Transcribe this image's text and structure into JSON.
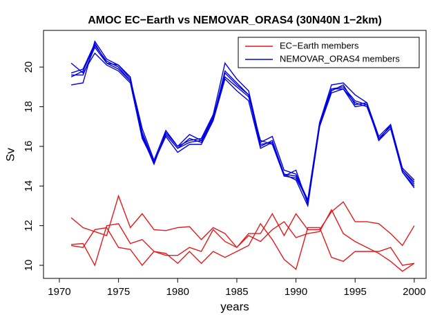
{
  "chart_data": {
    "type": "line",
    "title": "AMOC EC−Earth vs NEMOVAR_ORAS4 (30N40N 1−2km)",
    "x_label": "years",
    "y_label": "Sv",
    "x": [
      1971,
      1972,
      1973,
      1974,
      1975,
      1976,
      1977,
      1978,
      1979,
      1980,
      1981,
      1982,
      1983,
      1984,
      1985,
      1986,
      1987,
      1988,
      1989,
      1990,
      1991,
      1992,
      1993,
      1994,
      1995,
      1996,
      1997,
      1998,
      1999,
      2000
    ],
    "series": [
      {
        "name": "EC−Earth members",
        "color": "#e41a1c",
        "members": [
          [
            12.4,
            11.9,
            11.7,
            11.5,
            13.5,
            11.9,
            12.6,
            11.8,
            11.75,
            11.9,
            11.95,
            11.3,
            11.9,
            11.6,
            10.9,
            11.6,
            11.6,
            12.6,
            11.5,
            12.6,
            11.8,
            11.8,
            12.7,
            13.2,
            12.2,
            12.2,
            12.1,
            11.6,
            11.0,
            12.0
          ],
          [
            11.05,
            11.1,
            10.0,
            12.0,
            12.1,
            11.1,
            11.3,
            10.7,
            10.5,
            10.5,
            10.9,
            10.7,
            11.8,
            11.2,
            10.9,
            11.5,
            11.2,
            11.8,
            12.2,
            11.4,
            11.6,
            11.7,
            12.8,
            11.6,
            11.2,
            10.9,
            10.6,
            10.2,
            9.7,
            10.1
          ],
          [
            11.0,
            10.9,
            11.8,
            11.9,
            10.9,
            10.8,
            10.0,
            10.7,
            10.6,
            10.1,
            10.7,
            10.1,
            10.7,
            10.4,
            10.7,
            11.0,
            12.1,
            11.3,
            10.3,
            9.8,
            11.9,
            11.9,
            10.4,
            10.2,
            10.7,
            10.7,
            10.7,
            10.9,
            10.0,
            10.1
          ]
        ]
      },
      {
        "name": "NEMOVAR_ORAS4 members",
        "color": "#0000e0",
        "members": [
          [
            19.1,
            19.2,
            21.3,
            20.4,
            20.1,
            19.4,
            16.9,
            15.3,
            16.8,
            16.0,
            16.3,
            16.4,
            17.6,
            20.2,
            19.4,
            18.8,
            16.2,
            16.5,
            14.8,
            14.6,
            13.3,
            17.2,
            19.1,
            19.2,
            18.6,
            18.2,
            16.5,
            17.1,
            14.9,
            14.3
          ],
          [
            19.5,
            19.8,
            21.1,
            20.3,
            20.0,
            19.3,
            16.7,
            15.2,
            16.6,
            15.9,
            16.2,
            16.3,
            17.4,
            19.7,
            19.1,
            18.6,
            16.0,
            16.3,
            14.6,
            14.5,
            13.2,
            17.1,
            18.9,
            19.0,
            18.3,
            18.1,
            16.4,
            17.0,
            14.8,
            14.2
          ],
          [
            19.7,
            19.9,
            21.2,
            20.2,
            20.1,
            19.5,
            16.5,
            15.1,
            16.7,
            16.0,
            16.6,
            16.3,
            17.5,
            19.5,
            19.0,
            18.5,
            16.3,
            16.1,
            14.5,
            14.8,
            13.1,
            17.0,
            18.8,
            19.1,
            18.1,
            18.2,
            16.3,
            17.1,
            14.7,
            14.0
          ],
          [
            20.2,
            19.7,
            20.7,
            20.1,
            19.8,
            19.2,
            16.4,
            15.2,
            16.5,
            15.7,
            16.1,
            16.1,
            17.3,
            19.4,
            18.8,
            18.3,
            15.9,
            16.2,
            14.6,
            14.3,
            13.0,
            17.0,
            18.7,
            18.9,
            18.0,
            18.1,
            16.3,
            16.9,
            14.7,
            13.9
          ],
          [
            19.6,
            19.6,
            21.0,
            20.2,
            19.9,
            19.3,
            16.6,
            15.2,
            16.6,
            15.9,
            16.4,
            16.2,
            17.4,
            19.8,
            19.2,
            18.6,
            16.1,
            16.2,
            14.5,
            14.4,
            13.3,
            17.2,
            18.9,
            18.9,
            18.2,
            18.0,
            16.4,
            17.0,
            14.8,
            14.1
          ]
        ]
      }
    ],
    "xlim": [
      1968.66,
      2001.0
    ],
    "ylim": [
      9.34,
      21.85
    ],
    "xticks": [
      1970,
      1975,
      1980,
      1985,
      1990,
      1995,
      2000
    ],
    "yticks": [
      10,
      12,
      14,
      16,
      18,
      20
    ],
    "legend": "upper right"
  }
}
